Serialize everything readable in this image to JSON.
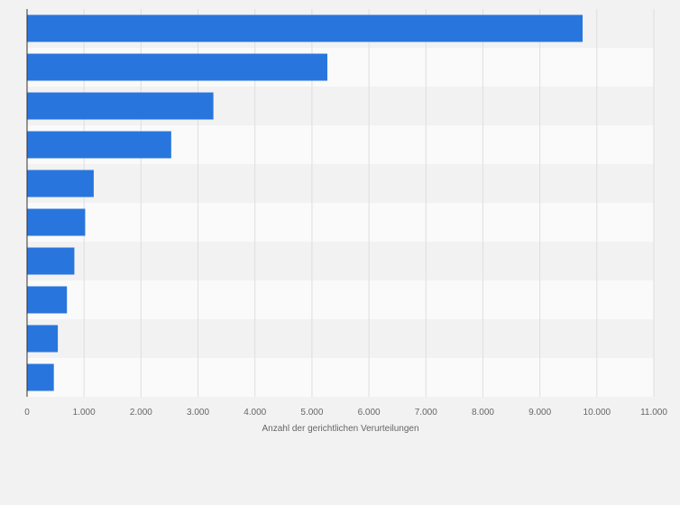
{
  "chart_data": {
    "type": "bar",
    "orientation": "horizontal",
    "title": "",
    "xlabel": "Anzahl der gerichtlichen Verurteilungen",
    "ylabel": "",
    "categories": [
      "",
      "",
      "",
      "",
      "",
      "",
      "",
      "",
      "",
      ""
    ],
    "values": [
      9750,
      5270,
      3270,
      2530,
      1170,
      1020,
      830,
      700,
      540,
      470
    ],
    "xlim": [
      0,
      11000
    ],
    "xticks": [
      0,
      1000,
      2000,
      3000,
      4000,
      5000,
      6000,
      7000,
      8000,
      9000,
      10000,
      11000
    ],
    "xtick_labels": [
      "0",
      "1.000",
      "2.000",
      "3.000",
      "4.000",
      "5.000",
      "6.000",
      "7.000",
      "8.000",
      "9.000",
      "10.000",
      "11.000"
    ],
    "grid": true,
    "legend": "none",
    "colors": {
      "bar": "#2876dd",
      "band_dark": "#f2f2f2",
      "band_light": "#fafafa",
      "grid": "#dedede",
      "axis": "#333333",
      "text": "#666666"
    }
  }
}
